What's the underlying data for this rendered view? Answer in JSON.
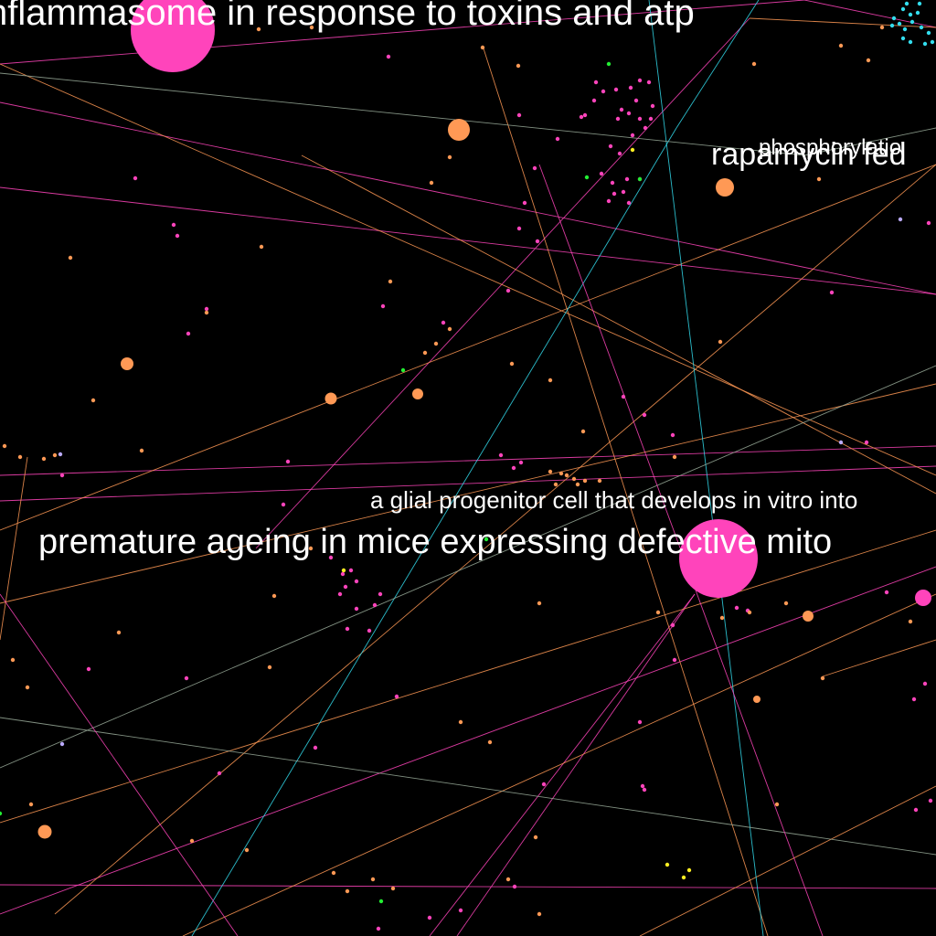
{
  "labels": {
    "inflammasome": "nflammasome in response to toxins and atp",
    "rapamycin": "rapamycin fed",
    "phosphorylation": "phosphorylatio",
    "glial": "a glial progenitor cell that develops in vitro into",
    "ageing": "premature ageing in mice expressing defective mito"
  },
  "colors": {
    "background": "#000000",
    "label": "#ffffff",
    "magenta": "#ff44bb",
    "orange": "#ff9955",
    "cyan": "#33ddee",
    "green": "#22ee33",
    "yellow": "#ffee22",
    "lavender": "#bbaaff",
    "grey_green": "#99aa99"
  }
}
